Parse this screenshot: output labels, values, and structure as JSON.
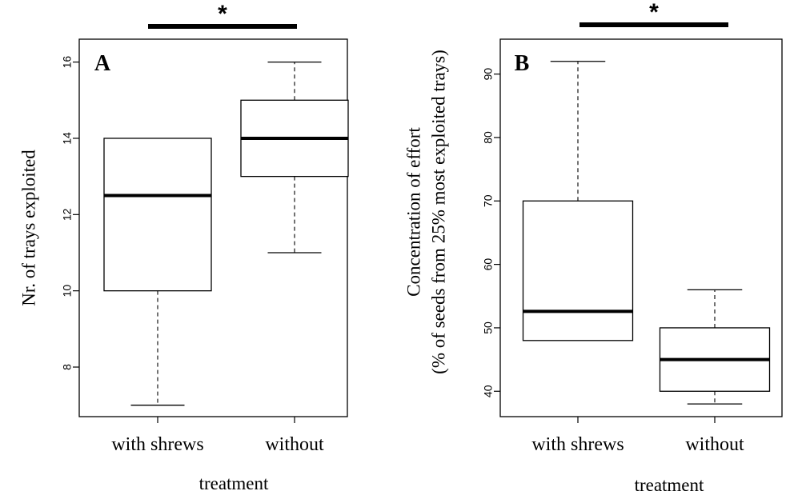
{
  "chart_data": [
    {
      "type": "box",
      "panel_label": "A",
      "significance": "*",
      "xlabel": "treatment",
      "ylabel": "Nr. of  trays exploited",
      "ylabel2": "",
      "ylim": [
        6.7,
        16.6
      ],
      "yticks": [
        8,
        10,
        12,
        14,
        16
      ],
      "categories": [
        "with shrews",
        "without"
      ],
      "boxes": [
        {
          "whisker_low": 7,
          "q1": 10,
          "median": 12.5,
          "q3": 14,
          "whisker_high": 14
        },
        {
          "whisker_low": 11,
          "q1": 13,
          "median": 14,
          "q3": 15,
          "whisker_high": 16
        }
      ]
    },
    {
      "type": "box",
      "panel_label": "B",
      "significance": "*",
      "xlabel": "treatment",
      "ylabel": "Concentration of effort",
      "ylabel2": "(% of seeds from 25% most exploited trays)",
      "ylim": [
        36.0,
        95.5
      ],
      "yticks": [
        40,
        50,
        60,
        70,
        80,
        90
      ],
      "categories": [
        "with shrews",
        "without"
      ],
      "boxes": [
        {
          "whisker_low": 48,
          "q1": 48,
          "median": 52.6,
          "q3": 70,
          "whisker_high": 92
        },
        {
          "whisker_low": 38,
          "q1": 40,
          "median": 45,
          "q3": 50,
          "whisker_high": 56
        }
      ]
    }
  ]
}
